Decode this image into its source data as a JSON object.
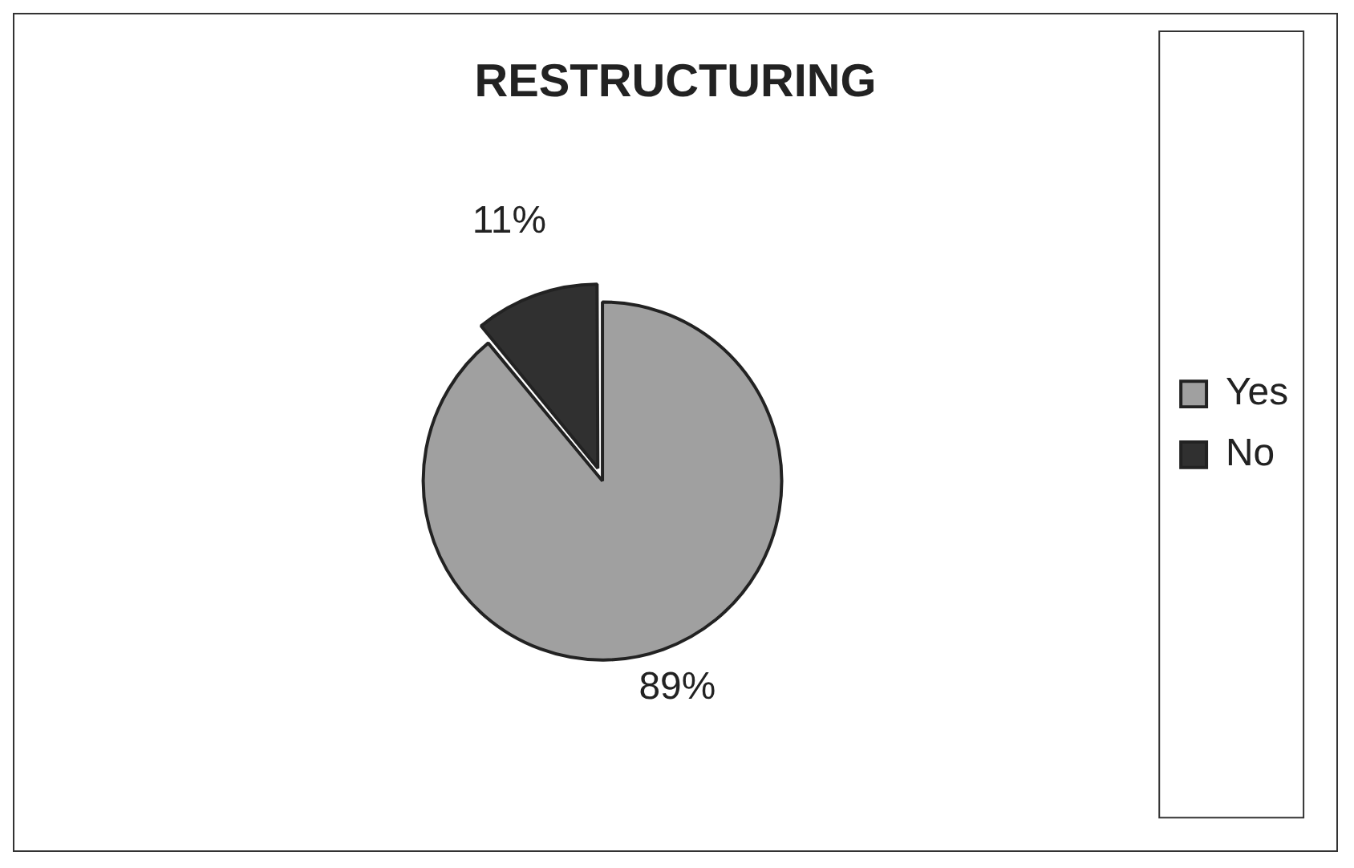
{
  "chart_data": {
    "type": "pie",
    "title": "RESTRUCTURING",
    "categories": [
      "Yes",
      "No"
    ],
    "values": [
      89,
      11
    ],
    "colors": [
      "#a0a0a0",
      "#303030"
    ],
    "value_labels": [
      "89%",
      "11%"
    ],
    "legend": "right"
  }
}
